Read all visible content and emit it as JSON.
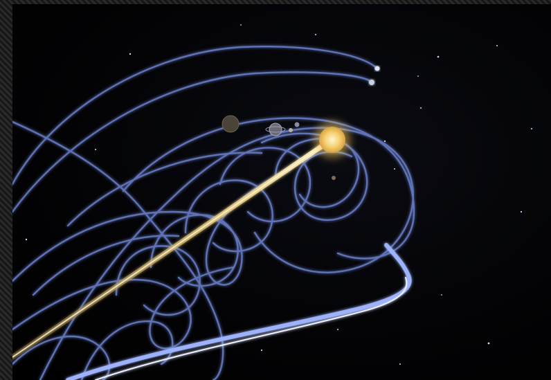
{
  "scene": {
    "subject": "",
    "colors": {
      "background": "#000000",
      "orbit_trail": "#6f86d6",
      "orbit_glow": "#8fa6ff",
      "sun_core": "#ffe7a0",
      "sun_glow": "#f5c85a",
      "sun_trail": "#f2d27a"
    },
    "planets": [
      {
        "name": "gas-giant-dim"
      },
      {
        "name": "ringed-planet"
      },
      {
        "name": "small-planet-a"
      },
      {
        "name": "small-planet-b"
      },
      {
        "name": "inner-planet"
      },
      {
        "name": "comet-head-a"
      },
      {
        "name": "comet-head-b"
      }
    ]
  }
}
